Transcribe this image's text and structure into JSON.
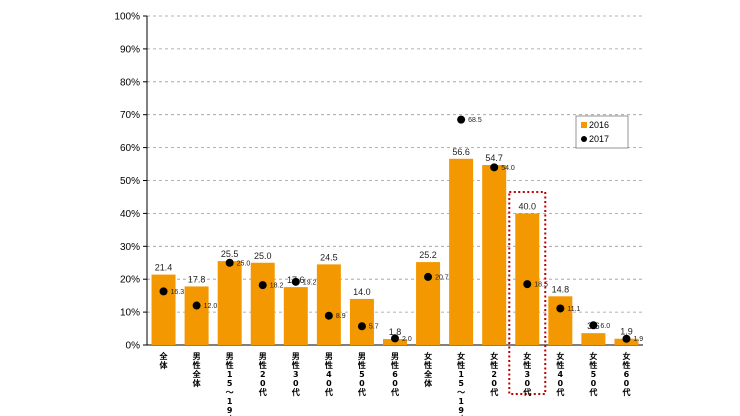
{
  "chart_data": {
    "type": "bar",
    "categories": [
      "全体",
      "男性全体",
      "男性15〜19才",
      "男性20代",
      "男性30代",
      "男性40代",
      "男性50代",
      "男性60代",
      "女性全体",
      "女性15〜19才",
      "女性20代",
      "女性30代",
      "女性40代",
      "女性50代",
      "女性60代"
    ],
    "series": [
      {
        "name": "2016",
        "mark": "bar",
        "color": "#f39800",
        "values": [
          21.4,
          17.8,
          25.5,
          25.0,
          17.6,
          24.5,
          14.0,
          1.8,
          25.2,
          56.6,
          54.7,
          40.0,
          14.8,
          3.6,
          1.9
        ],
        "labels": [
          "21.4",
          "17.8",
          "25.5",
          "25.0",
          "17.6",
          "24.5",
          "14.0",
          "1.8",
          "25.2",
          "56.6",
          "54.7",
          "40.0",
          "14.8",
          "3.6",
          "1.9"
        ]
      },
      {
        "name": "2017",
        "mark": "dot",
        "color": "#000000",
        "values": [
          16.3,
          12.0,
          25.0,
          18.2,
          19.2,
          8.9,
          5.7,
          2.0,
          20.7,
          68.5,
          54.0,
          18.5,
          11.1,
          6.0,
          1.9
        ],
        "labels": [
          "16.3",
          "12.0",
          "25.0",
          "18.2",
          "19.2",
          "8.9",
          "5.7",
          "2.0",
          "20.7",
          "68.5",
          "54.0",
          "18.5",
          "11.1",
          "6.0",
          "1.9"
        ]
      }
    ],
    "y_ticks": [
      "0%",
      "10%",
      "20%",
      "30%",
      "40%",
      "50%",
      "60%",
      "70%",
      "80%",
      "90%",
      "100%"
    ],
    "ylim": [
      0,
      100
    ],
    "title": "",
    "xlabel": "",
    "ylabel": "",
    "legend": {
      "items": [
        "2016",
        "2017"
      ],
      "position": "right"
    },
    "highlight": {
      "category": "女性30代",
      "color": "#c00000",
      "style": "dotted"
    }
  }
}
